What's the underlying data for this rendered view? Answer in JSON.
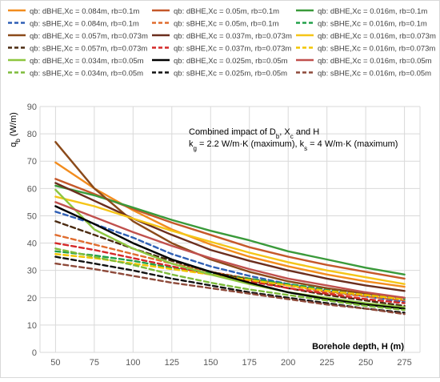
{
  "chart_data": {
    "type": "line",
    "title": "",
    "xlabel": "Borehole depth, H (m)",
    "ylabel": "q_b (W/m)",
    "xlim": [
      40,
      285
    ],
    "ylim": [
      0,
      90
    ],
    "xticks": [
      50,
      75,
      100,
      125,
      150,
      175,
      200,
      225,
      250,
      275
    ],
    "yticks": [
      0,
      10,
      20,
      30,
      40,
      50,
      60,
      70,
      80,
      90
    ],
    "grid": true,
    "legend_position": "top",
    "annotation": {
      "line1": "Combined impact of D_b, X_c  and H",
      "line2": "k_g = 2.2 W/m·K (maximum), k_s = 4 W/m·K (maximum)"
    },
    "x": [
      50,
      75,
      100,
      125,
      150,
      175,
      200,
      225,
      250,
      275
    ],
    "series": [
      {
        "name": "qb: dBHE,Xc = 0.084m, rb=0.1m",
        "color": "#F28C1E",
        "dash": false,
        "values": [
          69.5,
          60,
          52,
          45,
          39.5,
          35,
          31.5,
          28.5,
          26,
          24
        ]
      },
      {
        "name": "qb: dBHE,Xc = 0.05m, rb=0.1m",
        "color": "#C5582A",
        "dash": false,
        "values": [
          63.5,
          58,
          52.5,
          47.5,
          43,
          38.5,
          35,
          32,
          29.5,
          27
        ]
      },
      {
        "name": "qb: dBHE,Xc = 0.016m, rb=0.1m",
        "color": "#3A9A3A",
        "dash": false,
        "values": [
          61,
          57.5,
          53,
          48.5,
          44.5,
          41,
          37,
          34,
          31,
          28.5
        ]
      },
      {
        "name": "qb: sBHE,Xc = 0.084m, rb=0.1m",
        "color": "#2E5FB5",
        "dash": true,
        "values": [
          51.5,
          47,
          42,
          36,
          31.5,
          28,
          25,
          22.5,
          20.5,
          18.5
        ]
      },
      {
        "name": "qb: sBHE,Xc = 0.05m, rb=0.1m",
        "color": "#E06C2E",
        "dash": true,
        "values": [
          43,
          39.5,
          36,
          32.5,
          29.5,
          27,
          24.5,
          22,
          20.5,
          19
        ]
      },
      {
        "name": "qb: sBHE,Xc = 0.016m, rb=0.1m",
        "color": "#22A04A",
        "dash": true,
        "values": [
          37,
          35.5,
          33.5,
          31,
          29,
          27,
          25,
          23,
          21,
          19.5
        ]
      },
      {
        "name": "qb: dBHE,Xc = 0.057m, rb=0.073m",
        "color": "#8B4A1A",
        "dash": false,
        "values": [
          77,
          60,
          48,
          40,
          34,
          29.5,
          26,
          23.5,
          21.5,
          20
        ]
      },
      {
        "name": "qb: dBHE,Xc = 0.037m, rb=0.073m",
        "color": "#6B2E1E",
        "dash": false,
        "values": [
          62,
          55.5,
          49,
          43,
          37.5,
          33.5,
          30,
          27,
          24.5,
          22.5
        ]
      },
      {
        "name": "qb: dBHE,Xc = 0.016m, rb=0.073m",
        "color": "#F5C518",
        "dash": false,
        "values": [
          57,
          53.5,
          49,
          44.5,
          40.5,
          36.5,
          33,
          30,
          27.5,
          25
        ]
      },
      {
        "name": "qb: sBHE,Xc = 0.057m, rb=0.073m",
        "color": "#4A2A10",
        "dash": true,
        "values": [
          48,
          43,
          38,
          33.5,
          29.5,
          26.5,
          23.5,
          21,
          19,
          17
        ]
      },
      {
        "name": "qb: sBHE,Xc = 0.037m, rb=0.073m",
        "color": "#D42828",
        "dash": true,
        "values": [
          40,
          37.5,
          34.5,
          31.5,
          28.5,
          26,
          23.5,
          21.5,
          19.5,
          18
        ]
      },
      {
        "name": "qb: sBHE,Xc = 0.016m, rb=0.073m",
        "color": "#F2C500",
        "dash": true,
        "values": [
          36,
          34.5,
          32.5,
          30.5,
          28.5,
          26.5,
          24.5,
          22.5,
          21,
          19.5
        ]
      },
      {
        "name": "qb: dBHE,Xc = 0.034m, rb=0.05m",
        "color": "#8DC63F",
        "dash": false,
        "values": [
          59.5,
          45,
          38,
          32.5,
          28.5,
          25,
          22,
          20,
          18,
          16.5
        ]
      },
      {
        "name": "qb: dBHE,Xc = 0.025m, rb=0.05m",
        "color": "#000000",
        "dash": false,
        "values": [
          53.5,
          47,
          40,
          34,
          29.5,
          25.5,
          22,
          19.5,
          17.5,
          16
        ]
      },
      {
        "name": "qb: dBHE,Xc = 0.016m, rb=0.05m",
        "color": "#C0504D",
        "dash": false,
        "values": [
          55,
          49.5,
          44,
          39,
          34.5,
          30.5,
          27,
          24.5,
          22,
          20
        ]
      },
      {
        "name": "qb: sBHE,Xc = 0.034m, rb=0.05m",
        "color": "#7DBB3A",
        "dash": true,
        "values": [
          38,
          35,
          32,
          28.5,
          25.5,
          23,
          21,
          19,
          17,
          15.5
        ]
      },
      {
        "name": "qb: sBHE,Xc = 0.025m, rb=0.05m",
        "color": "#111111",
        "dash": true,
        "values": [
          35,
          32.5,
          30,
          27,
          24.5,
          22,
          20,
          18,
          16,
          14.5
        ]
      },
      {
        "name": "qb: sBHE,Xc = 0.016m, rb=0.05m",
        "color": "#8E4A3A",
        "dash": true,
        "values": [
          32.5,
          30.5,
          28,
          25.5,
          23.5,
          21.5,
          19.5,
          17.5,
          16,
          14
        ]
      }
    ]
  }
}
